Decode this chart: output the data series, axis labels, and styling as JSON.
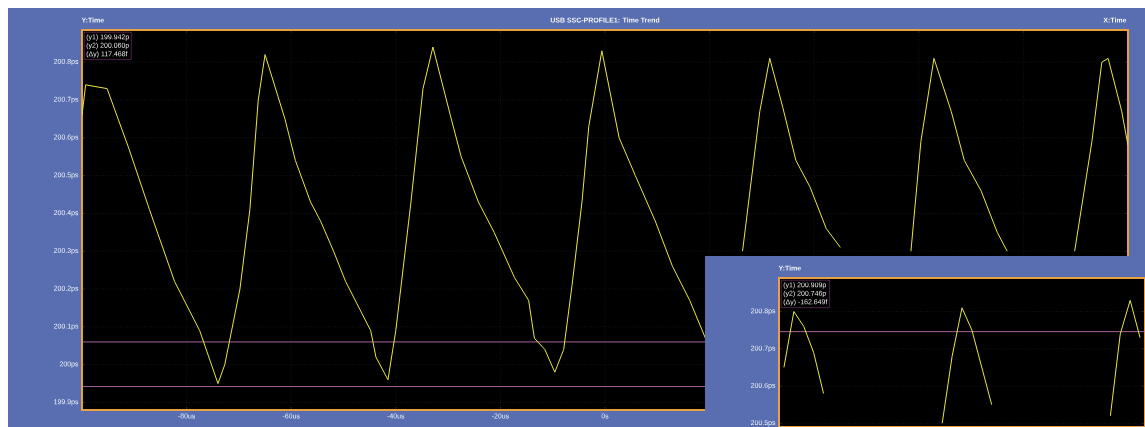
{
  "chart_data": [
    {
      "type": "line",
      "title": "USB SSC-PROFILE1: Time Trend",
      "xlabel": "X:Time",
      "ylabel": "Y:Time",
      "x": [
        -100.0,
        -99.3,
        -95.2,
        -91.0,
        -87.1,
        -82.3,
        -77.5,
        -74.0,
        -72.7,
        -69.8,
        -67.9,
        -66.3,
        -65.0,
        -61.2,
        -59.2,
        -56.3,
        -54.4,
        -51.9,
        -49.6,
        -44.8,
        -43.8,
        -41.5,
        -40.0,
        -37.1,
        -34.8,
        -32.9,
        -29.4,
        -27.5,
        -24.2,
        -21.2,
        -17.3,
        -14.6,
        -13.5,
        -11.5,
        -9.6,
        -7.9,
        -6.3,
        -4.4,
        -3.1,
        -0.6,
        2.7,
        5.8,
        9.6,
        12.9,
        16.2,
        19.2,
        22.0,
        26.3,
        29.6,
        31.5,
        34.0,
        36.5,
        39.2,
        42.3,
        45.0,
        50.0,
        58.5,
        60.4,
        62.9,
        66.2,
        68.7,
        71.9,
        75.0,
        76.9,
        83.0,
        89.8,
        93.1,
        95.0,
        96.2,
        98.8,
        100.0
      ],
      "series": [
        {
          "color": "#e8e840",
          "values": [
            200.66,
            200.74,
            200.73,
            200.57,
            200.41,
            200.22,
            200.09,
            199.95,
            200.0,
            200.2,
            200.41,
            200.7,
            200.82,
            200.65,
            200.54,
            200.43,
            200.38,
            200.3,
            200.22,
            200.09,
            200.02,
            199.96,
            200.09,
            200.43,
            200.73,
            200.84,
            200.65,
            200.55,
            200.43,
            200.35,
            200.23,
            200.17,
            200.07,
            200.04,
            199.98,
            200.04,
            200.21,
            200.43,
            200.63,
            200.83,
            200.6,
            200.5,
            200.38,
            200.26,
            200.17,
            200.07,
            null,
            200.3,
            200.67,
            200.81,
            200.68,
            200.54,
            200.47,
            200.36,
            200.31,
            null,
            200.3,
            200.59,
            200.81,
            200.67,
            200.54,
            200.46,
            200.35,
            200.3,
            null,
            200.3,
            200.59,
            200.8,
            200.81,
            200.67,
            200.58
          ]
        }
      ],
      "xlim": [
        -100,
        100
      ],
      "ylim": [
        199.88,
        200.885
      ],
      "xticks": [
        {
          "value": -80,
          "label": "-80us"
        },
        {
          "value": -60,
          "label": "-60us"
        },
        {
          "value": -40,
          "label": "-40us"
        },
        {
          "value": -20,
          "label": "-20us"
        },
        {
          "value": 0,
          "label": "0s"
        },
        {
          "value": 20,
          "label": null
        },
        {
          "value": 40,
          "label": null
        },
        {
          "value": 60,
          "label": null
        },
        {
          "value": 80,
          "label": null
        }
      ],
      "yticks": [
        {
          "value": 199.9,
          "label": "199.9ps"
        },
        {
          "value": 200.0,
          "label": "200ps"
        },
        {
          "value": 200.1,
          "label": "200.1ps"
        },
        {
          "value": 200.2,
          "label": "200.2ps"
        },
        {
          "value": 200.3,
          "label": "200.3ps"
        },
        {
          "value": 200.4,
          "label": "200.4ps"
        },
        {
          "value": 200.5,
          "label": "200.5ps"
        },
        {
          "value": 200.6,
          "label": "200.6ps"
        },
        {
          "value": 200.7,
          "label": "200.7ps"
        },
        {
          "value": 200.8,
          "label": "200.8ps"
        }
      ],
      "grid": true,
      "ref_lines": [
        {
          "axis": "y",
          "value": 199.942,
          "color": "#d080c8"
        },
        {
          "axis": "y",
          "value": 200.06,
          "color": "#d080c8"
        }
      ],
      "annotations": [
        "(y1) 199.942p",
        "(y2) 200.060p",
        "(Δy) 117.468f"
      ]
    },
    {
      "type": "line",
      "ylabel": "Y:Time",
      "categories": [
        null,
        null,
        null,
        null,
        null,
        null,
        null,
        null,
        null,
        null,
        null,
        null,
        null,
        null,
        null,
        null,
        null,
        null,
        null,
        null,
        null,
        null,
        null,
        null,
        null,
        null,
        null,
        null,
        null,
        null,
        null,
        null,
        null,
        null,
        null,
        null,
        null
      ],
      "series": [
        {
          "color": "#e8e840",
          "values": [
            200.65,
            200.8,
            200.76,
            200.69,
            200.58,
            null,
            null,
            null,
            null,
            null,
            null,
            null,
            null,
            null,
            null,
            null,
            200.5,
            200.68,
            200.81,
            200.75,
            200.65,
            200.55,
            null,
            null,
            null,
            null,
            null,
            null,
            null,
            null,
            null,
            null,
            null,
            200.52,
            200.74,
            200.83,
            200.73
          ]
        }
      ],
      "ylim": [
        200.49,
        200.89
      ],
      "yticks": [
        {
          "value": 200.5,
          "label": "200.5ps"
        },
        {
          "value": 200.6,
          "label": "200.6ps"
        },
        {
          "value": 200.7,
          "label": "200.7ps"
        },
        {
          "value": 200.8,
          "label": "200.8ps"
        }
      ],
      "grid": "y",
      "tick_labels": "y",
      "ref_lines": [
        {
          "axis": "y",
          "value": 200.746,
          "color": "#d080c8"
        }
      ],
      "annotations": [
        "(y1) 200.909p",
        "(y2) 200.746p",
        "(Δy) -162.649f"
      ]
    }
  ]
}
